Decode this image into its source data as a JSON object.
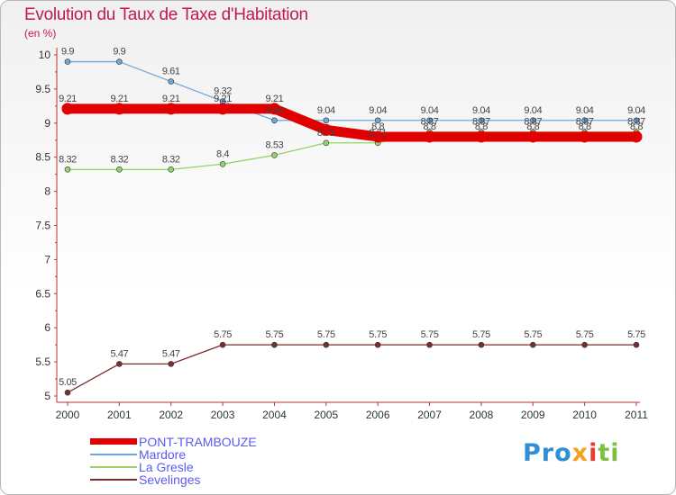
{
  "chart_data": {
    "type": "line",
    "title": "Evolution du Taux de Taxe d'Habitation",
    "subtitle": "(en %)",
    "x": [
      "2000",
      "2001",
      "2002",
      "2003",
      "2004",
      "2005",
      "2006",
      "2007",
      "2008",
      "2009",
      "2010",
      "2011"
    ],
    "ylim": [
      5,
      10
    ],
    "yticks": [
      "5",
      "5.5",
      "6",
      "6.5",
      "7",
      "7.5",
      "8",
      "8.5",
      "9",
      "9.5",
      "10"
    ],
    "grid": false,
    "legend_position": "bottom-left",
    "series": [
      {
        "name": "PONT-TRAMBOUZE",
        "color": "#e00000",
        "values": [
          9.21,
          9.21,
          9.21,
          9.21,
          9.21,
          8.9,
          8.8,
          8.8,
          8.8,
          8.8,
          8.8,
          8.8
        ],
        "labels": [
          "9.21",
          "9.21",
          "9.21",
          "9.21",
          "9.21",
          "",
          "8.8",
          "8.8",
          "8.8",
          "8.8",
          "8.8",
          "8.8"
        ]
      },
      {
        "name": "Mardore",
        "color": "#6fa8dc",
        "values": [
          9.9,
          9.9,
          9.61,
          9.32,
          9.04,
          9.04,
          9.04,
          9.04,
          9.04,
          9.04,
          9.04,
          9.04
        ],
        "labels": [
          "9.9",
          "9.9",
          "9.61",
          "9.32",
          "9.04",
          "9.04",
          "9.04",
          "9.04",
          "9.04",
          "9.04",
          "9.04",
          "9.04"
        ]
      },
      {
        "name": "La Gresle",
        "color": "#93d36a",
        "values": [
          8.32,
          8.32,
          8.32,
          8.4,
          8.53,
          8.71,
          8.71,
          8.87,
          8.87,
          8.87,
          8.87,
          8.87
        ],
        "labels": [
          "8.32",
          "8.32",
          "8.32",
          "8.4",
          "8.53",
          "8.71",
          "8.71",
          "8.87",
          "8.87",
          "8.87",
          "8.87",
          "8.87"
        ]
      },
      {
        "name": "Sevelinges",
        "color": "#7a2f2f",
        "values": [
          5.05,
          5.47,
          5.47,
          5.75,
          5.75,
          5.75,
          5.75,
          5.75,
          5.75,
          5.75,
          5.75,
          5.75
        ],
        "labels": [
          "5.05",
          "5.47",
          "5.47",
          "5.75",
          "5.75",
          "5.75",
          "5.75",
          "5.75",
          "5.75",
          "5.75",
          "5.75",
          "5.75"
        ]
      }
    ]
  },
  "legend_items": [
    "PONT-TRAMBOUZE",
    "Mardore",
    "La Gresle",
    "Sevelinges"
  ],
  "logo": {
    "text_parts": [
      "Pro",
      "x",
      "i",
      "ti"
    ]
  }
}
